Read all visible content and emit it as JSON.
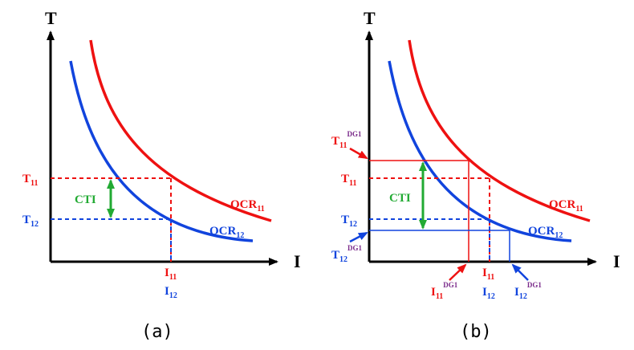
{
  "panel_a": {
    "caption": "(a)",
    "axis_y": "T",
    "axis_x": "I",
    "t11": {
      "base": "T",
      "sub": "11"
    },
    "t12": {
      "base": "T",
      "sub": "12"
    },
    "i11": {
      "base": "I",
      "sub": "11"
    },
    "i12": {
      "base": "I",
      "sub": "12"
    },
    "cti": "CTI",
    "ocr11": {
      "base": "OCR",
      "sub": "11"
    },
    "ocr12": {
      "base": "OCR",
      "sub": "12"
    }
  },
  "panel_b": {
    "caption": "(b)",
    "axis_y": "T",
    "axis_x": "I",
    "t11dg": {
      "base": "T",
      "sub": "11",
      "sup": "DG1"
    },
    "t11": {
      "base": "T",
      "sub": "11"
    },
    "t12": {
      "base": "T",
      "sub": "12"
    },
    "t12dg": {
      "base": "T",
      "sub": "12",
      "sup": "DG1"
    },
    "i11dg": {
      "base": "I",
      "sub": "11",
      "sup": "DG1"
    },
    "i11": {
      "base": "I",
      "sub": "11"
    },
    "i12": {
      "base": "I",
      "sub": "12"
    },
    "i12dg": {
      "base": "I",
      "sub": "12",
      "sup": "DG1"
    },
    "cti": "CTI",
    "ocr11": {
      "base": "OCR",
      "sub": "11"
    },
    "ocr12": {
      "base": "OCR",
      "sub": "12"
    }
  },
  "colors": {
    "axis": "#000000",
    "ocr11": "#ee1111",
    "ocr12": "#1144dd",
    "cti": "#22aa33",
    "dg_label": "#7a2a8a"
  }
}
